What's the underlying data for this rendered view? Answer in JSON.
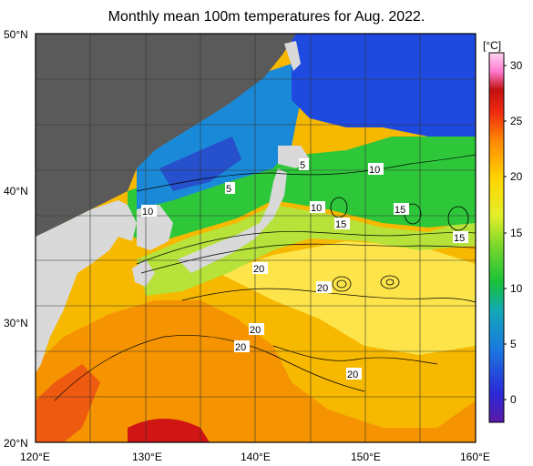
{
  "title": "Monthly mean 100m temperatures for Aug. 2022.",
  "colorbar": {
    "unit": "[°C]",
    "ticks": [
      "30",
      "25",
      "20",
      "15",
      "10",
      "5",
      "0"
    ]
  },
  "axes": {
    "lat_ticks": [
      "50°N",
      "40°N",
      "30°N",
      "20°N"
    ],
    "lon_ticks": [
      "120°E",
      "130°E",
      "140°E",
      "150°E",
      "160°E"
    ]
  },
  "contour_labels": [
    "5",
    "5",
    "10",
    "10",
    "10",
    "15",
    "15",
    "15",
    "20",
    "20",
    "20",
    "20",
    "20",
    "10",
    "15"
  ],
  "colors": {
    "land": "#d9d9d9",
    "no_data": "#5a5a5a",
    "frame": "#000000"
  }
}
